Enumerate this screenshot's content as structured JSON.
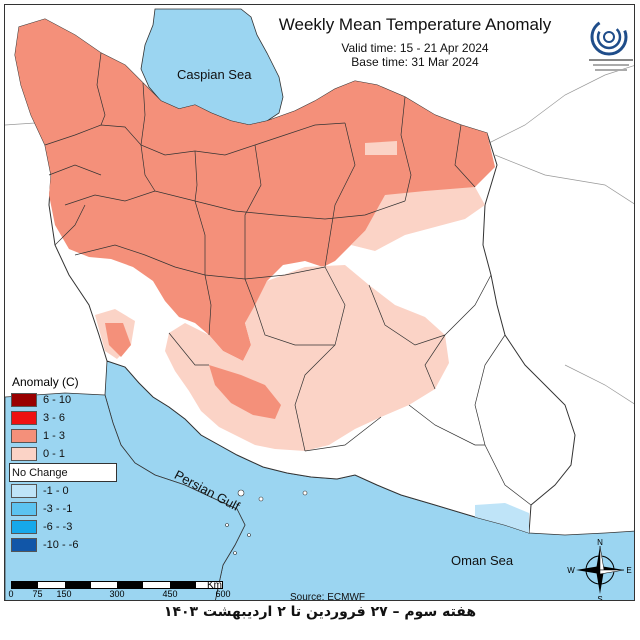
{
  "title": "Weekly Mean Temperature Anomaly",
  "valid_time": "Valid time: 15 - 21 Apr 2024",
  "base_time": "Base time: 31 Mar 2024",
  "seas": {
    "caspian": "Caspian Sea",
    "persian_gulf": "Persian Gulf",
    "oman": "Oman Sea"
  },
  "legend": {
    "title": "Anomaly (C)",
    "items": [
      {
        "label": "6 - 10",
        "color": "#990000"
      },
      {
        "label": "3 - 6",
        "color": "#ee1111"
      },
      {
        "label": "1 - 3",
        "color": "#f4907a"
      },
      {
        "label": "0 - 1",
        "color": "#fbd3c6"
      },
      {
        "label": "No Change",
        "color": "#ffffff"
      },
      {
        "label": "-1 - 0",
        "color": "#bfe4f8"
      },
      {
        "label": "-3 - -1",
        "color": "#5cc3f0"
      },
      {
        "label": "-6 - -3",
        "color": "#16a8ea"
      },
      {
        "label": "-10 - -6",
        "color": "#1156a8"
      }
    ]
  },
  "scale": {
    "ticks": [
      "0",
      "75",
      "150",
      "300",
      "450",
      "600"
    ],
    "unit": "Km"
  },
  "source": "Source: ECMWF",
  "compass": {
    "n": "N",
    "s": "S",
    "e": "E",
    "w": "W"
  },
  "footer": "هفته سوم – ۲۷ فروردین تا ۲ اردیبهشت ۱۴۰۳",
  "colors": {
    "sea": "#9bd5f1",
    "land_outside": "#ffffff",
    "border": "#333333"
  }
}
